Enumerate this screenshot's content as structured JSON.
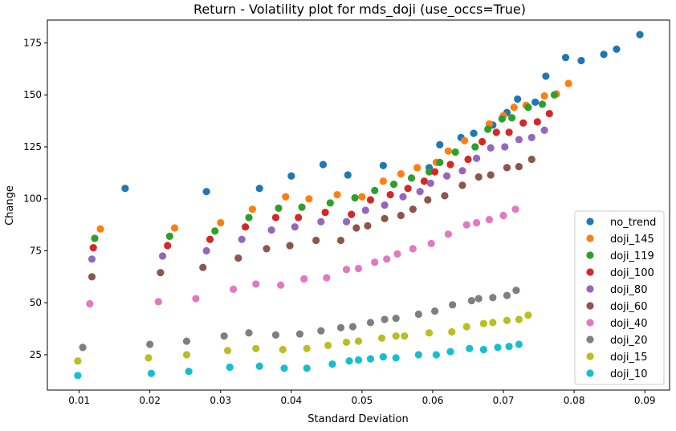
{
  "chart_data": {
    "type": "scatter",
    "title": "Return - Volatility plot for mds_doji (use_occs=True)",
    "xlabel": "Standard Deviation",
    "ylabel": "Change",
    "xlim": [
      0.0055,
      0.0935
    ],
    "ylim": [
      8.0,
      186.0
    ],
    "xticks": [
      0.01,
      0.02,
      0.03,
      0.04,
      0.05,
      0.06,
      0.07,
      0.08,
      0.09
    ],
    "yticks": [
      25,
      50,
      75,
      100,
      125,
      150,
      175
    ],
    "grid": false,
    "legend_position": "lower-right",
    "series": [
      {
        "name": "no_trend",
        "color": "#1f77b4",
        "points": [
          [
            0.0165,
            105
          ],
          [
            0.028,
            103.5
          ],
          [
            0.0355,
            105
          ],
          [
            0.04,
            111
          ],
          [
            0.0445,
            116.5
          ],
          [
            0.048,
            111.5
          ],
          [
            0.053,
            116
          ],
          [
            0.0595,
            115
          ],
          [
            0.061,
            126
          ],
          [
            0.064,
            129.5
          ],
          [
            0.0658,
            131.5
          ],
          [
            0.0685,
            135.5
          ],
          [
            0.0705,
            141.5
          ],
          [
            0.072,
            148
          ],
          [
            0.0745,
            146.5
          ],
          [
            0.076,
            159
          ],
          [
            0.0788,
            168
          ],
          [
            0.081,
            166.5
          ],
          [
            0.0842,
            169.5
          ],
          [
            0.086,
            172
          ],
          [
            0.0893,
            179
          ]
        ]
      },
      {
        "name": "doji_145",
        "color": "#ff7f0e",
        "points": [
          [
            0.013,
            85.5
          ],
          [
            0.0235,
            86
          ],
          [
            0.03,
            88.5
          ],
          [
            0.0345,
            95
          ],
          [
            0.0392,
            101
          ],
          [
            0.0425,
            100
          ],
          [
            0.0465,
            102
          ],
          [
            0.05,
            101
          ],
          [
            0.053,
            108.5
          ],
          [
            0.0555,
            112
          ],
          [
            0.0578,
            115
          ],
          [
            0.0605,
            117.5
          ],
          [
            0.0622,
            123
          ],
          [
            0.0645,
            128
          ],
          [
            0.068,
            136
          ],
          [
            0.07,
            140
          ],
          [
            0.0715,
            144
          ],
          [
            0.0732,
            145
          ],
          [
            0.0758,
            149.5
          ],
          [
            0.0775,
            150.5
          ],
          [
            0.0792,
            155.5
          ]
        ]
      },
      {
        "name": "doji_119",
        "color": "#2ca02c",
        "points": [
          [
            0.0122,
            81
          ],
          [
            0.0228,
            82
          ],
          [
            0.0292,
            84.5
          ],
          [
            0.034,
            91
          ],
          [
            0.0382,
            95.5
          ],
          [
            0.0415,
            96
          ],
          [
            0.0455,
            98
          ],
          [
            0.049,
            100.5
          ],
          [
            0.0518,
            104
          ],
          [
            0.0545,
            107
          ],
          [
            0.057,
            110
          ],
          [
            0.0595,
            113
          ],
          [
            0.061,
            117.5
          ],
          [
            0.0632,
            122.5
          ],
          [
            0.066,
            125
          ],
          [
            0.0678,
            133.5
          ],
          [
            0.0698,
            138.5
          ],
          [
            0.0712,
            139
          ],
          [
            0.0735,
            144
          ],
          [
            0.0755,
            145.5
          ],
          [
            0.0772,
            150
          ]
        ]
      },
      {
        "name": "doji_100",
        "color": "#d62728",
        "points": [
          [
            0.012,
            76.5
          ],
          [
            0.0225,
            77.5
          ],
          [
            0.0285,
            80.5
          ],
          [
            0.0335,
            86.5
          ],
          [
            0.0378,
            91
          ],
          [
            0.041,
            91
          ],
          [
            0.0448,
            93.5
          ],
          [
            0.0485,
            92.5
          ],
          [
            0.0512,
            99.5
          ],
          [
            0.054,
            102
          ],
          [
            0.0565,
            105
          ],
          [
            0.0588,
            108.5
          ],
          [
            0.0603,
            113
          ],
          [
            0.0625,
            116.5
          ],
          [
            0.065,
            119
          ],
          [
            0.067,
            127.5
          ],
          [
            0.069,
            132
          ],
          [
            0.0708,
            132
          ],
          [
            0.0728,
            136.5
          ],
          [
            0.0748,
            137
          ],
          [
            0.0765,
            141
          ]
        ]
      },
      {
        "name": "doji_80",
        "color": "#9467bd",
        "points": [
          [
            0.0118,
            71
          ],
          [
            0.0218,
            72.5
          ],
          [
            0.028,
            75
          ],
          [
            0.033,
            80.5
          ],
          [
            0.0372,
            85
          ],
          [
            0.0405,
            86.5
          ],
          [
            0.0442,
            89
          ],
          [
            0.0478,
            89
          ],
          [
            0.0505,
            94.5
          ],
          [
            0.0532,
            97
          ],
          [
            0.0558,
            101
          ],
          [
            0.0582,
            103.5
          ],
          [
            0.0597,
            107.5
          ],
          [
            0.062,
            111
          ],
          [
            0.0642,
            113.5
          ],
          [
            0.0662,
            119.5
          ],
          [
            0.0682,
            124.5
          ],
          [
            0.0702,
            125
          ],
          [
            0.0722,
            128.5
          ],
          [
            0.074,
            129.5
          ],
          [
            0.0758,
            133
          ]
        ]
      },
      {
        "name": "doji_60",
        "color": "#8c564b",
        "points": [
          [
            0.0118,
            62.5
          ],
          [
            0.0215,
            64.5
          ],
          [
            0.0275,
            67
          ],
          [
            0.0325,
            71.5
          ],
          [
            0.0365,
            76
          ],
          [
            0.0398,
            77.5
          ],
          [
            0.0435,
            80
          ],
          [
            0.047,
            80
          ],
          [
            0.0492,
            86
          ],
          [
            0.0508,
            87
          ],
          [
            0.0532,
            90.5
          ],
          [
            0.0555,
            92
          ],
          [
            0.0572,
            95
          ],
          [
            0.0593,
            99.5
          ],
          [
            0.0617,
            101.5
          ],
          [
            0.0642,
            106.5
          ],
          [
            0.0665,
            110.5
          ],
          [
            0.0682,
            111.5
          ],
          [
            0.0705,
            115
          ],
          [
            0.0722,
            115.5
          ],
          [
            0.074,
            119
          ]
        ]
      },
      {
        "name": "doji_40",
        "color": "#e377c2",
        "points": [
          [
            0.0115,
            49.5
          ],
          [
            0.0212,
            50.5
          ],
          [
            0.0265,
            52
          ],
          [
            0.0318,
            56.5
          ],
          [
            0.035,
            59
          ],
          [
            0.0385,
            58.5
          ],
          [
            0.0418,
            61.5
          ],
          [
            0.045,
            62
          ],
          [
            0.0478,
            66
          ],
          [
            0.0495,
            66.5
          ],
          [
            0.0518,
            69.5
          ],
          [
            0.0535,
            71
          ],
          [
            0.055,
            73.5
          ],
          [
            0.0572,
            76
          ],
          [
            0.0598,
            78.5
          ],
          [
            0.0622,
            83
          ],
          [
            0.0648,
            87.5
          ],
          [
            0.0662,
            88.5
          ],
          [
            0.068,
            90
          ],
          [
            0.07,
            92
          ],
          [
            0.0717,
            95
          ]
        ]
      },
      {
        "name": "doji_20",
        "color": "#7f7f7f",
        "points": [
          [
            0.0105,
            28.5
          ],
          [
            0.02,
            30
          ],
          [
            0.0252,
            31.5
          ],
          [
            0.0305,
            34
          ],
          [
            0.034,
            35.5
          ],
          [
            0.0378,
            34.5
          ],
          [
            0.0412,
            35
          ],
          [
            0.0442,
            36.5
          ],
          [
            0.047,
            38
          ],
          [
            0.0487,
            38.5
          ],
          [
            0.0512,
            40.5
          ],
          [
            0.0532,
            42
          ],
          [
            0.0548,
            42.5
          ],
          [
            0.058,
            44.5
          ],
          [
            0.0603,
            46
          ],
          [
            0.0628,
            49
          ],
          [
            0.0655,
            51
          ],
          [
            0.0665,
            52
          ],
          [
            0.0685,
            52.5
          ],
          [
            0.0705,
            53.5
          ],
          [
            0.0718,
            56
          ]
        ]
      },
      {
        "name": "doji_15",
        "color": "#bcbd22",
        "points": [
          [
            0.0098,
            22
          ],
          [
            0.0198,
            23.5
          ],
          [
            0.0252,
            25
          ],
          [
            0.031,
            27
          ],
          [
            0.035,
            28
          ],
          [
            0.0388,
            27.5
          ],
          [
            0.0422,
            28
          ],
          [
            0.0452,
            29.5
          ],
          [
            0.0478,
            31
          ],
          [
            0.0495,
            31.5
          ],
          [
            0.0528,
            33
          ],
          [
            0.0548,
            34
          ],
          [
            0.056,
            34
          ],
          [
            0.0595,
            35.5
          ],
          [
            0.0627,
            36
          ],
          [
            0.0648,
            38.5
          ],
          [
            0.0672,
            40
          ],
          [
            0.0685,
            40.5
          ],
          [
            0.0705,
            41.5
          ],
          [
            0.0722,
            42
          ],
          [
            0.0735,
            44
          ]
        ]
      },
      {
        "name": "doji_10",
        "color": "#17becf",
        "points": [
          [
            0.0098,
            15
          ],
          [
            0.0202,
            16
          ],
          [
            0.0255,
            17
          ],
          [
            0.0313,
            19
          ],
          [
            0.0355,
            19.5
          ],
          [
            0.039,
            18.5
          ],
          [
            0.0422,
            18.5
          ],
          [
            0.0458,
            20.5
          ],
          [
            0.0482,
            22
          ],
          [
            0.0495,
            22.5
          ],
          [
            0.0512,
            23
          ],
          [
            0.053,
            24
          ],
          [
            0.0548,
            23.5
          ],
          [
            0.058,
            25
          ],
          [
            0.0605,
            25
          ],
          [
            0.0625,
            26.5
          ],
          [
            0.0652,
            28
          ],
          [
            0.0672,
            27.5
          ],
          [
            0.0692,
            28.5
          ],
          [
            0.0708,
            29
          ],
          [
            0.0722,
            30
          ]
        ]
      }
    ]
  }
}
